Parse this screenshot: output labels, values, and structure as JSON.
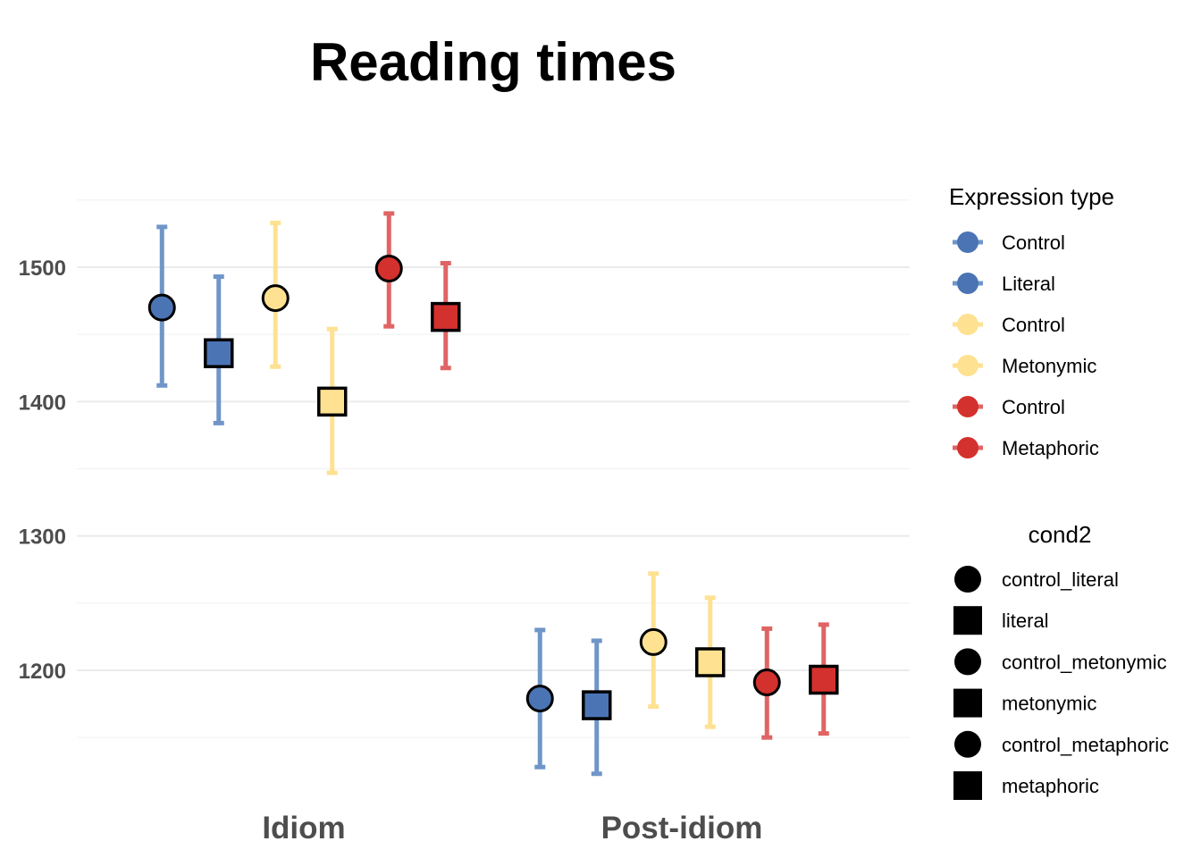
{
  "chart_data": {
    "type": "scatter",
    "title": "Reading times",
    "xlabel": "",
    "ylabel": "",
    "categories": [
      "Idiom",
      "Post-idiom"
    ],
    "ylim": [
      1100,
      1570
    ],
    "yticks": [
      1200,
      1300,
      1400,
      1500
    ],
    "grid": true,
    "colors": {
      "Literal": "#4a74b4",
      "Metonymic": "#fee191",
      "Metaphoric": "#d3312d"
    },
    "series": [
      {
        "cond2": "control_literal",
        "expression": "Control",
        "group": "Literal",
        "shape": "circle",
        "points": [
          {
            "x": "Idiom",
            "y": 1470,
            "ymin": 1412,
            "ymax": 1530
          },
          {
            "x": "Post-idiom",
            "y": 1179,
            "ymin": 1128,
            "ymax": 1230
          }
        ]
      },
      {
        "cond2": "literal",
        "expression": "Literal",
        "group": "Literal",
        "shape": "square",
        "points": [
          {
            "x": "Idiom",
            "y": 1436,
            "ymin": 1384,
            "ymax": 1493
          },
          {
            "x": "Post-idiom",
            "y": 1174,
            "ymin": 1123,
            "ymax": 1222
          }
        ]
      },
      {
        "cond2": "control_metonymic",
        "expression": "Control",
        "group": "Metonymic",
        "shape": "circle",
        "points": [
          {
            "x": "Idiom",
            "y": 1477,
            "ymin": 1426,
            "ymax": 1533
          },
          {
            "x": "Post-idiom",
            "y": 1221,
            "ymin": 1173,
            "ymax": 1272
          }
        ]
      },
      {
        "cond2": "metonymic",
        "expression": "Metonymic",
        "group": "Metonymic",
        "shape": "square",
        "points": [
          {
            "x": "Idiom",
            "y": 1400,
            "ymin": 1347,
            "ymax": 1454
          },
          {
            "x": "Post-idiom",
            "y": 1206,
            "ymin": 1158,
            "ymax": 1254
          }
        ]
      },
      {
        "cond2": "control_metaphoric",
        "expression": "Control",
        "group": "Metaphoric",
        "shape": "circle",
        "points": [
          {
            "x": "Idiom",
            "y": 1499,
            "ymin": 1456,
            "ymax": 1540
          },
          {
            "x": "Post-idiom",
            "y": 1191,
            "ymin": 1150,
            "ymax": 1231
          }
        ]
      },
      {
        "cond2": "metaphoric",
        "expression": "Metaphoric",
        "group": "Metaphoric",
        "shape": "square",
        "points": [
          {
            "x": "Idiom",
            "y": 1463,
            "ymin": 1425,
            "ymax": 1503
          },
          {
            "x": "Post-idiom",
            "y": 1193,
            "ymin": 1153,
            "ymax": 1234
          }
        ]
      }
    ],
    "legends": [
      {
        "title": "Expression type",
        "entries": [
          {
            "label": "Control",
            "color": "#4a74b4"
          },
          {
            "label": "Literal",
            "color": "#4a74b4"
          },
          {
            "label": "Control",
            "color": "#fee191"
          },
          {
            "label": "Metonymic",
            "color": "#fee191"
          },
          {
            "label": "Control",
            "color": "#d3312d"
          },
          {
            "label": "Metaphoric",
            "color": "#d3312d"
          }
        ]
      },
      {
        "title": "cond2",
        "entries": [
          {
            "label": "control_literal",
            "shape": "circle"
          },
          {
            "label": "literal",
            "shape": "square"
          },
          {
            "label": "control_metonymic",
            "shape": "circle"
          },
          {
            "label": "metonymic",
            "shape": "square"
          },
          {
            "label": "control_metaphoric",
            "shape": "circle"
          },
          {
            "label": "metaphoric",
            "shape": "square"
          }
        ]
      }
    ],
    "legend_position": "right"
  }
}
